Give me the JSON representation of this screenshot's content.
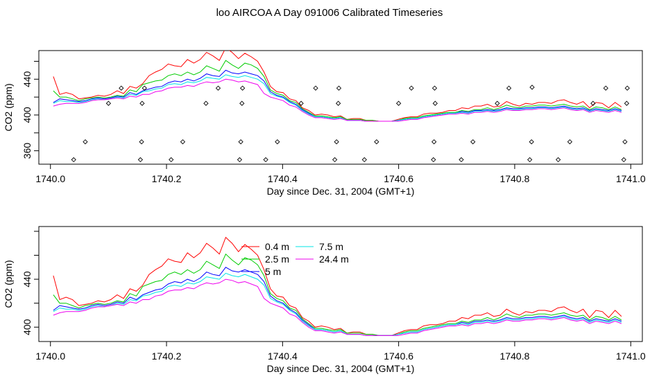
{
  "title": "loo AIRCOA A  Day 091006  Calibrated Timeseries",
  "colors": {
    "0.4 m": "#ff0000",
    "2.5 m": "#00cc00",
    "5 m": "#0000ff",
    "7.5 m": "#00e5e5",
    "24.4 m": "#ee00ee"
  },
  "chart_data": [
    {
      "type": "line",
      "title": "",
      "xlabel": "Day since Dec. 31, 2004 (GMT+1)",
      "ylabel": "CO2 (ppm)",
      "xlim": [
        1739.98,
        1741.02
      ],
      "ylim": [
        345,
        472
      ],
      "x_ticks": [
        1740.0,
        1740.2,
        1740.4,
        1740.6,
        1740.8,
        1741.0
      ],
      "x_tick_labels": [
        "1740.0",
        "1740.2",
        "1740.4",
        "1740.6",
        "1740.8",
        "1741.0"
      ],
      "y_ticks": [
        360,
        400,
        440
      ],
      "y_tick_labels": [
        "360",
        "400",
        "440"
      ],
      "x": [
        1740.005,
        1740.016,
        1740.027,
        1740.038,
        1740.049,
        1740.06,
        1740.071,
        1740.082,
        1740.093,
        1740.104,
        1740.115,
        1740.126,
        1740.137,
        1740.148,
        1740.159,
        1740.17,
        1740.181,
        1740.192,
        1740.203,
        1740.214,
        1740.225,
        1740.236,
        1740.247,
        1740.258,
        1740.269,
        1740.28,
        1740.291,
        1740.302,
        1740.313,
        1740.324,
        1740.335,
        1740.346,
        1740.357,
        1740.368,
        1740.379,
        1740.39,
        1740.401,
        1740.412,
        1740.423,
        1740.434,
        1740.445,
        1740.456,
        1740.467,
        1740.478,
        1740.489,
        1740.5,
        1740.511,
        1740.522,
        1740.533,
        1740.544,
        1740.555,
        1740.566,
        1740.577,
        1740.588,
        1740.599,
        1740.61,
        1740.621,
        1740.632,
        1740.643,
        1740.654,
        1740.665,
        1740.676,
        1740.687,
        1740.698,
        1740.709,
        1740.72,
        1740.731,
        1740.742,
        1740.753,
        1740.764,
        1740.775,
        1740.786,
        1740.797,
        1740.808,
        1740.819,
        1740.83,
        1740.841,
        1740.852,
        1740.863,
        1740.874,
        1740.885,
        1740.896,
        1740.907,
        1740.918,
        1740.929,
        1740.94,
        1740.951,
        1740.962,
        1740.973,
        1740.984
      ],
      "series": [
        {
          "name": "0.4 m",
          "values": [
            443,
            423,
            425,
            423,
            418,
            419,
            420,
            422,
            421,
            423,
            427,
            424,
            432,
            430,
            435,
            444,
            448,
            451,
            457,
            455,
            454,
            462,
            458,
            462,
            470,
            466,
            461,
            475,
            470,
            463,
            469,
            465,
            460,
            448,
            432,
            426,
            425,
            418,
            416,
            408,
            405,
            400,
            401,
            400,
            398,
            399,
            395,
            396,
            396,
            394,
            394,
            393,
            393,
            393,
            395,
            397,
            398,
            398,
            401,
            402,
            402,
            403,
            405,
            405,
            408,
            407,
            410,
            410,
            412,
            409,
            410,
            415,
            412,
            410,
            413,
            412,
            414,
            414,
            413,
            416,
            417,
            414,
            412,
            415,
            408,
            414,
            413,
            408,
            414,
            409
          ]
        },
        {
          "name": "2.5 m",
          "values": [
            427,
            420,
            420,
            418,
            416,
            418,
            419,
            420,
            419,
            420,
            422,
            421,
            428,
            426,
            434,
            436,
            438,
            439,
            444,
            446,
            444,
            448,
            445,
            448,
            455,
            452,
            449,
            461,
            456,
            452,
            458,
            456,
            452,
            443,
            428,
            424,
            422,
            416,
            414,
            407,
            403,
            399,
            399,
            398,
            397,
            398,
            395,
            395,
            395,
            394,
            394,
            393,
            393,
            393,
            394,
            396,
            397,
            397,
            399,
            400,
            401,
            402,
            403,
            403,
            405,
            404,
            406,
            406,
            408,
            406,
            408,
            411,
            409,
            408,
            410,
            410,
            411,
            411,
            410,
            411,
            412,
            410,
            409,
            410,
            406,
            409,
            408,
            406,
            409,
            406
          ]
        },
        {
          "name": "5 m",
          "values": [
            414,
            418,
            417,
            416,
            415,
            416,
            418,
            419,
            418,
            419,
            421,
            420,
            425,
            423,
            427,
            429,
            431,
            432,
            436,
            438,
            437,
            440,
            438,
            441,
            446,
            444,
            443,
            450,
            447,
            446,
            448,
            446,
            444,
            438,
            426,
            422,
            420,
            415,
            412,
            406,
            402,
            398,
            398,
            397,
            396,
            397,
            394,
            394,
            394,
            393,
            393,
            393,
            393,
            393,
            394,
            395,
            396,
            396,
            398,
            399,
            400,
            401,
            402,
            402,
            404,
            403,
            405,
            405,
            406,
            405,
            406,
            408,
            407,
            407,
            408,
            408,
            409,
            409,
            408,
            409,
            410,
            408,
            407,
            408,
            405,
            407,
            406,
            405,
            407,
            405
          ]
        },
        {
          "name": "7.5 m",
          "values": [
            413,
            416,
            415,
            415,
            414,
            415,
            417,
            418,
            417,
            418,
            420,
            419,
            423,
            422,
            426,
            427,
            429,
            430,
            434,
            435,
            434,
            437,
            436,
            438,
            442,
            441,
            440,
            445,
            443,
            442,
            444,
            442,
            440,
            435,
            424,
            421,
            419,
            414,
            411,
            405,
            401,
            398,
            398,
            397,
            396,
            397,
            394,
            394,
            394,
            393,
            393,
            393,
            393,
            393,
            394,
            395,
            396,
            396,
            398,
            399,
            400,
            401,
            402,
            402,
            403,
            402,
            404,
            404,
            405,
            404,
            405,
            407,
            406,
            406,
            407,
            407,
            408,
            408,
            407,
            408,
            409,
            407,
            406,
            407,
            404,
            406,
            405,
            404,
            406,
            404
          ]
        },
        {
          "name": "24.4 m",
          "values": [
            410,
            412,
            413,
            413,
            413,
            414,
            416,
            417,
            417,
            418,
            419,
            418,
            421,
            420,
            423,
            423,
            426,
            427,
            430,
            431,
            431,
            433,
            432,
            435,
            437,
            436,
            437,
            440,
            439,
            437,
            438,
            436,
            434,
            424,
            420,
            418,
            416,
            411,
            409,
            404,
            400,
            397,
            397,
            396,
            395,
            396,
            394,
            394,
            394,
            393,
            393,
            393,
            393,
            393,
            393,
            394,
            395,
            395,
            397,
            398,
            399,
            400,
            401,
            401,
            402,
            401,
            403,
            403,
            404,
            403,
            404,
            406,
            405,
            405,
            406,
            406,
            407,
            407,
            406,
            407,
            408,
            406,
            405,
            406,
            403,
            405,
            404,
            403,
            405,
            403
          ]
        }
      ],
      "scatter_points": {
        "x": [
          1740.04,
          1740.06,
          1740.1,
          1740.122,
          1740.155,
          1740.157,
          1740.158,
          1740.162,
          1740.208,
          1740.228,
          1740.268,
          1740.289,
          1740.326,
          1740.328,
          1740.33,
          1740.331,
          1740.371,
          1740.391,
          1740.432,
          1740.457,
          1740.49,
          1740.493,
          1740.496,
          1740.497,
          1740.541,
          1740.562,
          1740.6,
          1740.622,
          1740.66,
          1740.661,
          1740.663,
          1740.662,
          1740.708,
          1740.728,
          1740.77,
          1740.79,
          1740.826,
          1740.829,
          1740.83,
          1740.875,
          1740.895,
          1740.935,
          1740.957,
          1740.988,
          1740.99,
          1740.993,
          1740.994
        ],
        "y": [
          350,
          370,
          413,
          430,
          350,
          370,
          413,
          430,
          350,
          370,
          413,
          430,
          350,
          370,
          413,
          430,
          350,
          370,
          413,
          430,
          350,
          370,
          413,
          430,
          350,
          370,
          413,
          430,
          350,
          370,
          413,
          430,
          350,
          370,
          413,
          430,
          350,
          370,
          431,
          350,
          370,
          413,
          430,
          350,
          370,
          413,
          430
        ]
      }
    },
    {
      "type": "line",
      "title": "",
      "xlabel": "Day since Dec. 31, 2004 (GMT+1)",
      "ylabel": "CO2 (ppm)",
      "xlim": [
        1739.98,
        1741.02
      ],
      "ylim": [
        388,
        484
      ],
      "x_ticks": [
        1740.0,
        1740.2,
        1740.4,
        1740.6,
        1740.8,
        1741.0
      ],
      "x_tick_labels": [
        "1740.0",
        "1740.2",
        "1740.4",
        "1740.6",
        "1740.8",
        "1741.0"
      ],
      "y_ticks": [
        400,
        440
      ],
      "y_tick_labels": [
        "400",
        "440"
      ],
      "legend": {
        "placement": "top-center",
        "entries": [
          "0.4 m",
          "2.5 m",
          "5 m",
          "7.5 m",
          "24.4 m"
        ]
      },
      "uses_series_of_panel": 0
    }
  ]
}
